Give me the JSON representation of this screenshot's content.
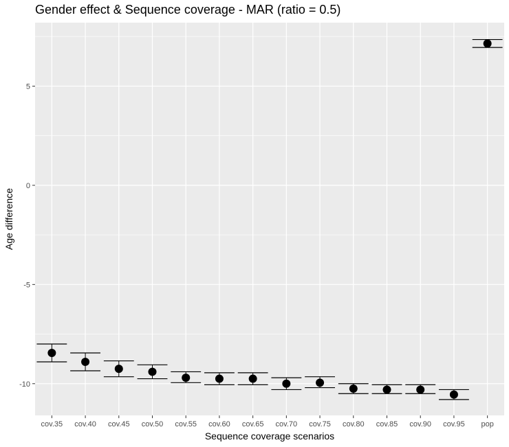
{
  "chart_data": {
    "type": "scatter",
    "title": "Gender effect & Sequence coverage - MAR (ratio = 0.5)",
    "xlabel": "Sequence coverage scenarios",
    "ylabel": "Age difference",
    "categories": [
      "cov.35",
      "cov.40",
      "cov.45",
      "cov.50",
      "cov.55",
      "cov.60",
      "cov.65",
      "cov.70",
      "cov.75",
      "cov.80",
      "cov.85",
      "cov.90",
      "cov.95",
      "pop"
    ],
    "values": [
      -8.45,
      -8.9,
      -9.25,
      -9.4,
      -9.7,
      -9.75,
      -9.75,
      -10.0,
      -9.95,
      -10.25,
      -10.3,
      -10.3,
      -10.55,
      7.15
    ],
    "lower": [
      -8.9,
      -9.35,
      -9.65,
      -9.75,
      -9.95,
      -10.05,
      -10.05,
      -10.3,
      -10.2,
      -10.5,
      -10.5,
      -10.5,
      -10.8,
      6.95
    ],
    "upper": [
      -8.0,
      -8.45,
      -8.85,
      -9.05,
      -9.4,
      -9.45,
      -9.45,
      -9.7,
      -9.65,
      -10.0,
      -10.05,
      -10.05,
      -10.3,
      7.35
    ],
    "ylim": [
      -11.6,
      8.2
    ],
    "yticks": [
      5,
      0,
      -5,
      -10
    ],
    "ytick_labels": [
      "5",
      "0",
      "-5",
      "-10"
    ],
    "grid": true,
    "colors": {
      "panel": "#ebebeb",
      "grid": "#ffffff",
      "point": "#000000"
    }
  }
}
